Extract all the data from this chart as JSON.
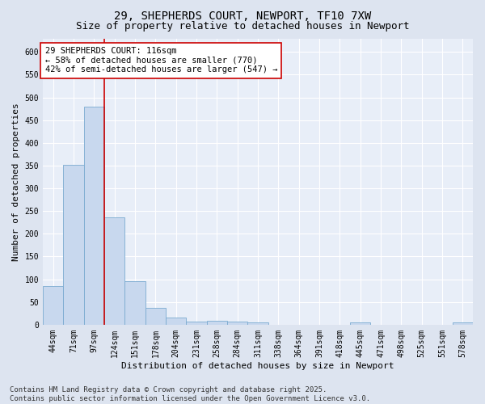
{
  "title": "29, SHEPHERDS COURT, NEWPORT, TF10 7XW",
  "subtitle": "Size of property relative to detached houses in Newport",
  "xlabel": "Distribution of detached houses by size in Newport",
  "ylabel": "Number of detached properties",
  "categories": [
    "44sqm",
    "71sqm",
    "97sqm",
    "124sqm",
    "151sqm",
    "178sqm",
    "204sqm",
    "231sqm",
    "258sqm",
    "284sqm",
    "311sqm",
    "338sqm",
    "364sqm",
    "391sqm",
    "418sqm",
    "445sqm",
    "471sqm",
    "498sqm",
    "525sqm",
    "551sqm",
    "578sqm"
  ],
  "values": [
    85,
    352,
    480,
    237,
    95,
    37,
    16,
    7,
    8,
    7,
    5,
    0,
    0,
    0,
    0,
    5,
    0,
    0,
    0,
    0,
    5
  ],
  "bar_color": "#c8d8ee",
  "bar_edge_color": "#7aaad0",
  "ylim": [
    0,
    630
  ],
  "yticks": [
    0,
    50,
    100,
    150,
    200,
    250,
    300,
    350,
    400,
    450,
    500,
    550,
    600
  ],
  "vline_x": 2.5,
  "vline_color": "#cc0000",
  "annotation_text": "29 SHEPHERDS COURT: 116sqm\n← 58% of detached houses are smaller (770)\n42% of semi-detached houses are larger (547) →",
  "annotation_box_color": "#ffffff",
  "annotation_box_edge": "#cc0000",
  "footer_text": "Contains HM Land Registry data © Crown copyright and database right 2025.\nContains public sector information licensed under the Open Government Licence v3.0.",
  "bg_color": "#dde4f0",
  "plot_bg_color": "#e8eef8",
  "grid_color": "#ffffff",
  "title_fontsize": 10,
  "subtitle_fontsize": 9,
  "axis_label_fontsize": 8,
  "tick_fontsize": 7,
  "annotation_fontsize": 7.5,
  "footer_fontsize": 6.5
}
